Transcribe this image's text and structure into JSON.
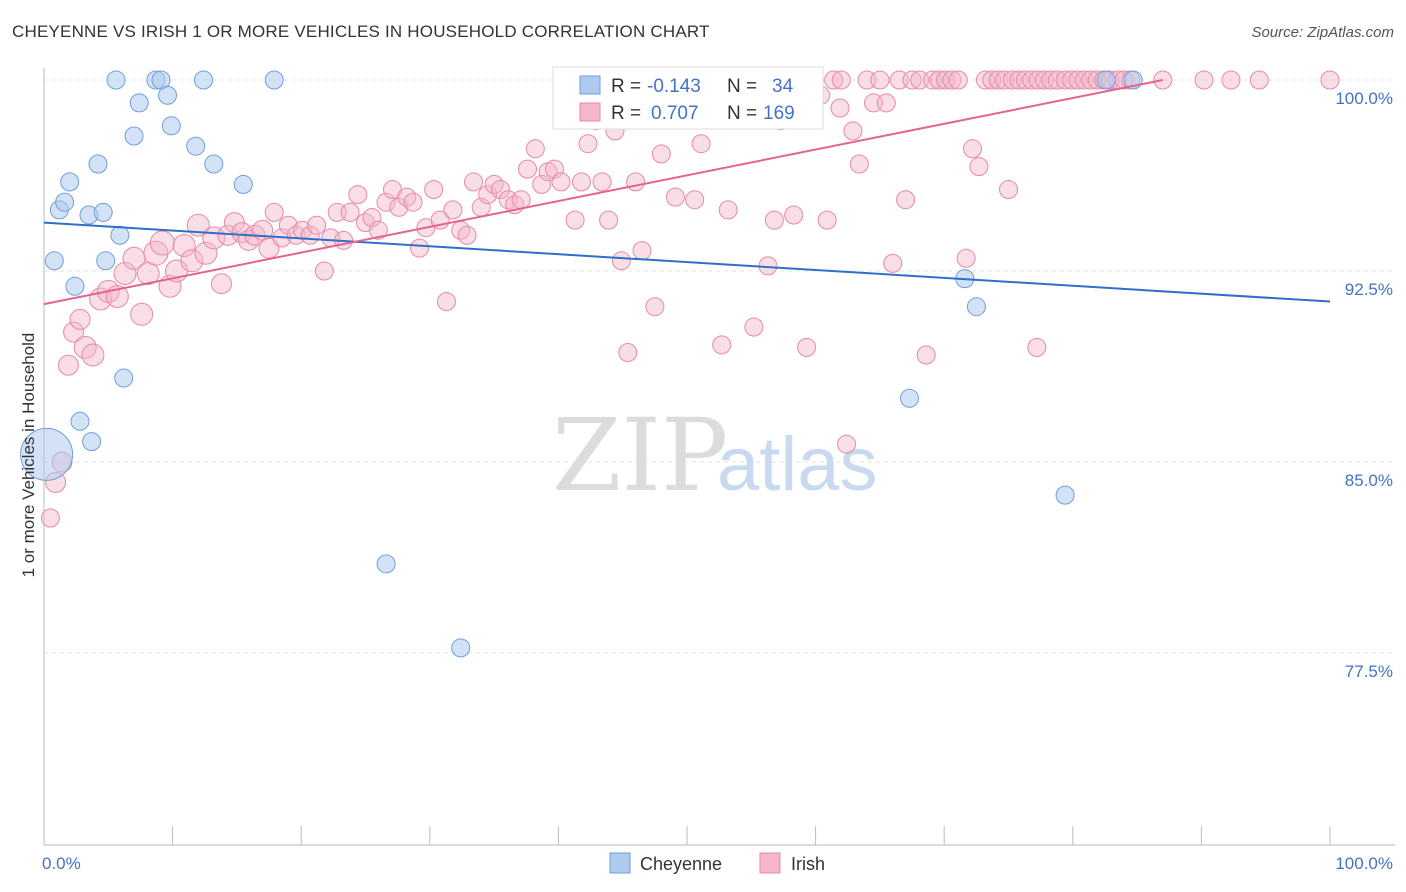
{
  "title": "CHEYENNE VS IRISH 1 OR MORE VEHICLES IN HOUSEHOLD CORRELATION CHART",
  "source": "Source: ZipAtlas.com",
  "watermark": {
    "zip": "ZIP",
    "atlas": "atlas"
  },
  "legend": {
    "rows": [
      {
        "r_label": "R =",
        "r_value": "-0.143",
        "n_label": "N =",
        "n_value": "34"
      },
      {
        "r_label": "R =",
        "r_value": "0.707",
        "n_label": "N =",
        "n_value": "169"
      }
    ]
  },
  "chart_data": {
    "type": "scatter",
    "title": "CHEYENNE VS IRISH 1 OR MORE VEHICLES IN HOUSEHOLD CORRELATION CHART",
    "xlabel": "",
    "ylabel": "1 or more Vehicles in Household",
    "xlim": [
      0,
      100
    ],
    "ylim": [
      70,
      100.7
    ],
    "x_tick_labels": [
      "0.0%",
      "100.0%"
    ],
    "y_ticks": [
      100.0,
      92.5,
      85.0,
      77.5
    ],
    "y_tick_labels": [
      "100.0%",
      "92.5%",
      "85.0%",
      "77.5%"
    ],
    "grid": true,
    "legend_position": "top-center",
    "colors": {
      "Cheyenne": "#aecbef",
      "Irish": "#f5b6c9",
      "cheyenne_line": "#2f6fcc",
      "irish_line": "#e5628f"
    },
    "series": [
      {
        "name": "Cheyenne",
        "trend": {
          "x": [
            0,
            100
          ],
          "y": [
            94.4,
            91.3
          ]
        },
        "points": [
          [
            0.2,
            85.3,
            26
          ],
          [
            0.8,
            92.9,
            9
          ],
          [
            1.2,
            94.9,
            9
          ],
          [
            1.6,
            95.2,
            9
          ],
          [
            2.0,
            96.0,
            9
          ],
          [
            2.4,
            91.9,
            9
          ],
          [
            2.8,
            86.6,
            9
          ],
          [
            3.5,
            94.7,
            9
          ],
          [
            3.7,
            85.8,
            9
          ],
          [
            4.2,
            96.7,
            9
          ],
          [
            4.6,
            94.8,
            9
          ],
          [
            4.8,
            92.9,
            9
          ],
          [
            5.6,
            100.0,
            9
          ],
          [
            5.9,
            93.9,
            9
          ],
          [
            6.2,
            88.3,
            9
          ],
          [
            7.0,
            97.8,
            9
          ],
          [
            7.4,
            99.1,
            9
          ],
          [
            8.7,
            100.0,
            9
          ],
          [
            9.1,
            100.0,
            9
          ],
          [
            9.6,
            99.4,
            9
          ],
          [
            9.9,
            98.2,
            9
          ],
          [
            11.8,
            97.4,
            9
          ],
          [
            12.4,
            100.0,
            9
          ],
          [
            13.2,
            96.7,
            9
          ],
          [
            15.5,
            95.9,
            9
          ],
          [
            17.9,
            100.0,
            9
          ],
          [
            26.6,
            81.0,
            9
          ],
          [
            32.4,
            77.7,
            9
          ],
          [
            67.3,
            87.5,
            9
          ],
          [
            71.6,
            92.2,
            9
          ],
          [
            72.5,
            91.1,
            9
          ],
          [
            79.4,
            83.7,
            9
          ],
          [
            82.6,
            100.0,
            9
          ],
          [
            84.7,
            100.0,
            9
          ]
        ]
      },
      {
        "name": "Irish",
        "trend": {
          "x": [
            0,
            87
          ],
          "y": [
            91.2,
            100.0
          ]
        },
        "points": [
          [
            0.5,
            82.8,
            9
          ],
          [
            0.9,
            84.2,
            10
          ],
          [
            1.4,
            85.0,
            10
          ],
          [
            1.9,
            88.8,
            10
          ],
          [
            2.3,
            90.1,
            10
          ],
          [
            2.8,
            90.6,
            10
          ],
          [
            3.2,
            89.5,
            11
          ],
          [
            3.8,
            89.2,
            11
          ],
          [
            4.4,
            91.4,
            11
          ],
          [
            5.0,
            91.7,
            11
          ],
          [
            5.7,
            91.5,
            11
          ],
          [
            6.3,
            92.4,
            11
          ],
          [
            7.0,
            93.0,
            11
          ],
          [
            7.6,
            90.8,
            11
          ],
          [
            8.1,
            92.4,
            11
          ],
          [
            8.7,
            93.2,
            12
          ],
          [
            9.2,
            93.6,
            12
          ],
          [
            9.8,
            91.9,
            11
          ],
          [
            10.3,
            92.5,
            11
          ],
          [
            10.9,
            93.5,
            11
          ],
          [
            11.5,
            92.9,
            11
          ],
          [
            12.0,
            94.3,
            11
          ],
          [
            12.6,
            93.2,
            11
          ],
          [
            13.2,
            93.8,
            11
          ],
          [
            13.8,
            92.0,
            10
          ],
          [
            14.3,
            93.9,
            10
          ],
          [
            14.8,
            94.4,
            10
          ],
          [
            15.4,
            94.0,
            10
          ],
          [
            15.9,
            93.7,
            10
          ],
          [
            16.4,
            93.9,
            10
          ],
          [
            17.0,
            94.1,
            10
          ],
          [
            17.5,
            93.4,
            10
          ],
          [
            17.9,
            94.8,
            9
          ],
          [
            18.5,
            93.8,
            9
          ],
          [
            19.0,
            94.3,
            9
          ],
          [
            19.6,
            93.9,
            9
          ],
          [
            20.1,
            94.1,
            9
          ],
          [
            20.7,
            93.9,
            9
          ],
          [
            21.2,
            94.3,
            9
          ],
          [
            21.8,
            92.5,
            9
          ],
          [
            22.3,
            93.8,
            9
          ],
          [
            22.8,
            94.8,
            9
          ],
          [
            23.3,
            93.7,
            9
          ],
          [
            23.8,
            94.8,
            9
          ],
          [
            24.4,
            95.5,
            9
          ],
          [
            25.0,
            94.4,
            9
          ],
          [
            25.5,
            94.6,
            9
          ],
          [
            26.0,
            94.1,
            9
          ],
          [
            26.6,
            95.2,
            9
          ],
          [
            27.1,
            95.7,
            9
          ],
          [
            27.6,
            95.0,
            9
          ],
          [
            28.2,
            95.4,
            9
          ],
          [
            28.7,
            95.2,
            9
          ],
          [
            29.2,
            93.4,
            9
          ],
          [
            29.7,
            94.2,
            9
          ],
          [
            30.3,
            95.7,
            9
          ],
          [
            30.8,
            94.5,
            9
          ],
          [
            31.3,
            91.3,
            9
          ],
          [
            31.8,
            94.9,
            9
          ],
          [
            32.4,
            94.1,
            9
          ],
          [
            32.9,
            93.9,
            9
          ],
          [
            33.4,
            96.0,
            9
          ],
          [
            34.0,
            95.0,
            9
          ],
          [
            34.5,
            95.5,
            9
          ],
          [
            35.0,
            95.9,
            9
          ],
          [
            35.5,
            95.7,
            9
          ],
          [
            36.1,
            95.3,
            9
          ],
          [
            36.6,
            95.1,
            9
          ],
          [
            37.1,
            95.3,
            9
          ],
          [
            37.6,
            96.5,
            9
          ],
          [
            38.2,
            97.3,
            9
          ],
          [
            38.7,
            95.9,
            9
          ],
          [
            39.2,
            96.4,
            9
          ],
          [
            39.7,
            96.5,
            9
          ],
          [
            40.2,
            96.0,
            9
          ],
          [
            40.8,
            99.0,
            9
          ],
          [
            41.3,
            94.5,
            9
          ],
          [
            41.8,
            96.0,
            9
          ],
          [
            42.3,
            97.5,
            9
          ],
          [
            42.9,
            98.4,
            9
          ],
          [
            43.4,
            96.0,
            9
          ],
          [
            43.9,
            94.5,
            9
          ],
          [
            44.4,
            98.0,
            9
          ],
          [
            44.9,
            92.9,
            9
          ],
          [
            45.4,
            89.3,
            9
          ],
          [
            46.0,
            96.0,
            9
          ],
          [
            46.5,
            93.3,
            9
          ],
          [
            47.0,
            99.0,
            9
          ],
          [
            47.5,
            91.1,
            9
          ],
          [
            48.0,
            97.1,
            9
          ],
          [
            48.5,
            99.5,
            9
          ],
          [
            49.1,
            95.4,
            9
          ],
          [
            49.6,
            100.0,
            9
          ],
          [
            50.1,
            98.9,
            9
          ],
          [
            50.6,
            95.3,
            9
          ],
          [
            51.1,
            97.5,
            9
          ],
          [
            51.6,
            98.5,
            9
          ],
          [
            52.2,
            99.4,
            9
          ],
          [
            52.7,
            89.6,
            9
          ],
          [
            53.2,
            94.9,
            9
          ],
          [
            53.7,
            99.9,
            9
          ],
          [
            54.2,
            100.0,
            9
          ],
          [
            54.7,
            99.3,
            9
          ],
          [
            55.2,
            90.3,
            9
          ],
          [
            55.8,
            100.0,
            9
          ],
          [
            56.3,
            92.7,
            9
          ],
          [
            56.8,
            94.5,
            9
          ],
          [
            57.3,
            98.4,
            9
          ],
          [
            57.8,
            100.0,
            9
          ],
          [
            58.3,
            94.7,
            9
          ],
          [
            58.8,
            99.7,
            9
          ],
          [
            59.3,
            89.5,
            9
          ],
          [
            59.9,
            100.0,
            9
          ],
          [
            60.4,
            99.4,
            9
          ],
          [
            60.9,
            94.5,
            9
          ],
          [
            61.4,
            100.0,
            9
          ],
          [
            61.9,
            98.9,
            9
          ],
          [
            62.4,
            85.7,
            9
          ],
          [
            62.9,
            98.0,
            9
          ],
          [
            63.4,
            96.7,
            9
          ],
          [
            64.0,
            100.0,
            9
          ],
          [
            64.5,
            99.1,
            9
          ],
          [
            65.0,
            100.0,
            9
          ],
          [
            65.5,
            99.1,
            9
          ],
          [
            66.0,
            92.8,
            9
          ],
          [
            66.5,
            100.0,
            9
          ],
          [
            67.0,
            95.3,
            9
          ],
          [
            67.5,
            100.0,
            9
          ],
          [
            68.1,
            100.0,
            9
          ],
          [
            68.6,
            89.2,
            9
          ],
          [
            69.1,
            100.0,
            9
          ],
          [
            69.6,
            100.0,
            9
          ],
          [
            70.1,
            100.0,
            9
          ],
          [
            70.6,
            100.0,
            9
          ],
          [
            71.1,
            100.0,
            9
          ],
          [
            71.7,
            93.0,
            9
          ],
          [
            72.2,
            97.3,
            9
          ],
          [
            72.7,
            96.6,
            9
          ],
          [
            73.2,
            100.0,
            9
          ],
          [
            73.7,
            100.0,
            9
          ],
          [
            74.2,
            100.0,
            9
          ],
          [
            74.7,
            100.0,
            9
          ],
          [
            75.3,
            100.0,
            9
          ],
          [
            75.8,
            100.0,
            9
          ],
          [
            76.3,
            100.0,
            9
          ],
          [
            76.8,
            100.0,
            9
          ],
          [
            77.3,
            100.0,
            9
          ],
          [
            77.8,
            100.0,
            9
          ],
          [
            78.3,
            100.0,
            9
          ],
          [
            78.8,
            100.0,
            9
          ],
          [
            79.4,
            100.0,
            9
          ],
          [
            79.9,
            100.0,
            9
          ],
          [
            80.4,
            100.0,
            9
          ],
          [
            80.9,
            100.0,
            9
          ],
          [
            81.4,
            100.0,
            9
          ],
          [
            81.9,
            100.0,
            9
          ],
          [
            82.4,
            100.0,
            9
          ],
          [
            82.9,
            100.0,
            9
          ],
          [
            83.5,
            100.0,
            9
          ],
          [
            84.0,
            100.0,
            9
          ],
          [
            84.5,
            100.0,
            9
          ],
          [
            87.0,
            100.0,
            9
          ],
          [
            90.2,
            100.0,
            9
          ],
          [
            92.3,
            100.0,
            9
          ],
          [
            94.5,
            100.0,
            9
          ],
          [
            75.0,
            95.7,
            9
          ],
          [
            77.2,
            89.5,
            9
          ],
          [
            62.0,
            100.0,
            9
          ],
          [
            100.0,
            100.0,
            9
          ]
        ]
      }
    ]
  }
}
